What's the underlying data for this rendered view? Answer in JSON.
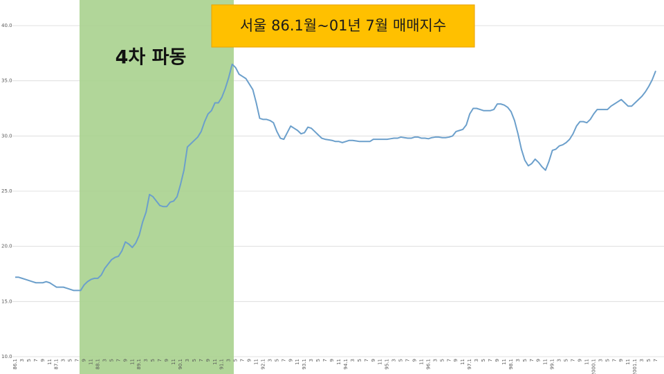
{
  "chart_data": {
    "type": "line",
    "title": "서울 86.1월~01년 7월 매매지수",
    "annotation": "4차 파동",
    "color": "#6b9fcb",
    "grid": true,
    "ylim": [
      10,
      40
    ],
    "yticks": [
      {
        "value": 10,
        "label": "10.0"
      },
      {
        "value": 15,
        "label": "15.0"
      },
      {
        "value": 20,
        "label": "20.0"
      },
      {
        "value": 25,
        "label": "25.0"
      },
      {
        "value": 30,
        "label": "30.0"
      },
      {
        "value": 35,
        "label": "35.0"
      },
      {
        "value": 40,
        "label": "40.0"
      }
    ],
    "categories": [
      "86.1",
      null,
      "3",
      null,
      "5",
      null,
      "7",
      null,
      "9",
      null,
      "11",
      null,
      "87.1",
      null,
      "3",
      null,
      "5",
      null,
      "7",
      null,
      "9",
      null,
      "11",
      null,
      "88.1",
      null,
      "3",
      null,
      "5",
      null,
      "7",
      null,
      "9",
      null,
      "11",
      null,
      "89.1",
      null,
      "3",
      null,
      "5",
      null,
      "7",
      null,
      "9",
      null,
      "11",
      null,
      "90.1",
      null,
      "3",
      null,
      "5",
      null,
      "7",
      null,
      "9",
      null,
      "11",
      null,
      "91.1",
      null,
      "3",
      null,
      "5",
      null,
      "7",
      null,
      "9",
      null,
      "11",
      null,
      "92.1",
      null,
      "3",
      null,
      "5",
      null,
      "7",
      null,
      "9",
      null,
      "11",
      null,
      "93.1",
      null,
      "3",
      null,
      "5",
      null,
      "7",
      null,
      "9",
      null,
      "11",
      null,
      "94.1",
      null,
      "3",
      null,
      "5",
      null,
      "7",
      null,
      "9",
      null,
      "11",
      null,
      "95.1",
      null,
      "3",
      null,
      "5",
      null,
      "7",
      null,
      "9",
      null,
      "11",
      null,
      "96.1",
      null,
      "3",
      null,
      "5",
      null,
      "7",
      null,
      "9",
      null,
      "11",
      null,
      "97.1",
      null,
      "3",
      null,
      "5",
      null,
      "7",
      null,
      "9",
      null,
      "11",
      null,
      "98.1",
      null,
      "3",
      null,
      "5",
      null,
      "7",
      null,
      "9",
      null,
      "11",
      null,
      "99.1",
      null,
      "3",
      null,
      "5",
      null,
      "7",
      null,
      "9",
      null,
      "11",
      null,
      "2000.1",
      null,
      "3",
      null,
      "5",
      null,
      "7",
      null,
      "9",
      null,
      "11",
      null,
      "2001.1",
      null,
      "3",
      null,
      "5",
      null,
      "7"
    ],
    "values": [
      17.2,
      17.2,
      17.1,
      17.0,
      16.9,
      16.8,
      16.7,
      16.7,
      16.7,
      16.8,
      16.7,
      16.5,
      16.3,
      16.3,
      16.3,
      16.2,
      16.1,
      16.0,
      16.0,
      16.0,
      16.5,
      16.8,
      17.0,
      17.1,
      17.1,
      17.4,
      18.0,
      18.4,
      18.8,
      19.0,
      19.1,
      19.6,
      20.4,
      20.2,
      19.9,
      20.3,
      21.0,
      22.2,
      23.1,
      24.7,
      24.5,
      24.1,
      23.7,
      23.6,
      23.6,
      24.0,
      24.1,
      24.5,
      25.6,
      26.9,
      29.0,
      29.3,
      29.6,
      29.9,
      30.4,
      31.3,
      32.0,
      32.3,
      33.0,
      33.0,
      33.5,
      34.3,
      35.3,
      36.5,
      36.2,
      35.6,
      35.4,
      35.2,
      34.7,
      34.2,
      33.0,
      31.6,
      31.5,
      31.5,
      31.4,
      31.2,
      30.4,
      29.8,
      29.7,
      30.3,
      30.9,
      30.7,
      30.5,
      30.2,
      30.3,
      30.8,
      30.7,
      30.4,
      30.1,
      29.8,
      29.7,
      29.65,
      29.6,
      29.5,
      29.5,
      29.4,
      29.5,
      29.6,
      29.6,
      29.55,
      29.5,
      29.5,
      29.5,
      29.5,
      29.7,
      29.7,
      29.7,
      29.7,
      29.7,
      29.75,
      29.8,
      29.8,
      29.9,
      29.85,
      29.8,
      29.8,
      29.9,
      29.9,
      29.8,
      29.8,
      29.75,
      29.85,
      29.9,
      29.9,
      29.85,
      29.85,
      29.9,
      30.0,
      30.4,
      30.5,
      30.6,
      31.0,
      32.0,
      32.5,
      32.5,
      32.4,
      32.3,
      32.3,
      32.3,
      32.4,
      32.9,
      32.9,
      32.8,
      32.6,
      32.2,
      31.4,
      30.2,
      28.8,
      27.8,
      27.3,
      27.5,
      27.9,
      27.6,
      27.2,
      26.9,
      27.7,
      28.7,
      28.8,
      29.1,
      29.2,
      29.4,
      29.7,
      30.2,
      30.9,
      31.3,
      31.3,
      31.2,
      31.5,
      32.0,
      32.4,
      32.4,
      32.4,
      32.4,
      32.7,
      32.9,
      33.1,
      33.3,
      33.0,
      32.7,
      32.7,
      33.0,
      33.3,
      33.6,
      34.0,
      34.5,
      35.1,
      35.9
    ]
  }
}
